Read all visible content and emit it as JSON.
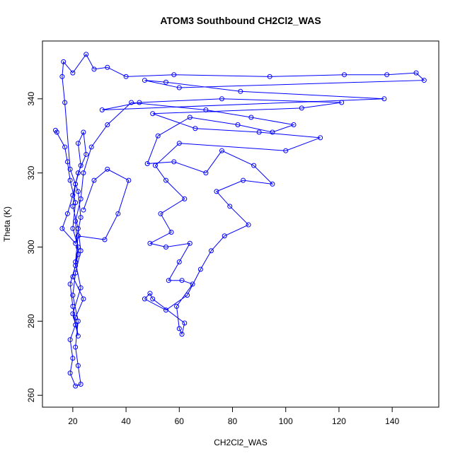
{
  "chart_data": {
    "type": "line",
    "title": "ATOM3 Southbound CH2Cl2_WAS",
    "x_label": "CH2Cl2_WAS",
    "y_label": "Theta (K)",
    "color": "#0000ff",
    "x": [
      14,
      13.5,
      17,
      18,
      19,
      21,
      20,
      22,
      21,
      19,
      20,
      21,
      19,
      20,
      19,
      21,
      23,
      22,
      21,
      22,
      20,
      21,
      23,
      22,
      20,
      21,
      23,
      22,
      24,
      25,
      22,
      20,
      18,
      16,
      21,
      23,
      22,
      19,
      17,
      16,
      16.5,
      20,
      25,
      28,
      33,
      40,
      58,
      94,
      122,
      138,
      149,
      152,
      60,
      47,
      55,
      83,
      137,
      31,
      45,
      76,
      121,
      106,
      50,
      66,
      90,
      113,
      100,
      60,
      51,
      55,
      62,
      53,
      57,
      49,
      55,
      64,
      60,
      56,
      61,
      65,
      59,
      60,
      61,
      62,
      50,
      49,
      47,
      55,
      63,
      68,
      72,
      77,
      86,
      79,
      74,
      84,
      95,
      88,
      76,
      70,
      58,
      48,
      52,
      64,
      82,
      95,
      103,
      87,
      70,
      42,
      33,
      27,
      24,
      23,
      21,
      22,
      20,
      24,
      21,
      22,
      20,
      23,
      21,
      22,
      32,
      37,
      41,
      33,
      28,
      24
    ],
    "values": [
      331,
      331.5,
      327,
      323,
      318,
      312,
      305,
      300,
      295,
      290,
      284,
      279,
      275,
      270,
      266,
      262.5,
      263,
      268,
      273,
      280,
      287,
      293,
      299,
      305,
      311,
      317,
      322,
      328,
      331,
      325,
      320,
      314,
      309,
      305,
      301,
      308,
      315,
      321,
      339,
      346,
      350,
      347,
      352,
      348,
      348.5,
      346,
      346.5,
      346,
      346.5,
      346.5,
      347,
      345,
      343,
      345,
      344.5,
      342,
      340,
      337,
      339,
      340,
      339,
      337.5,
      336,
      332,
      331,
      329.5,
      326,
      328,
      322,
      318,
      313,
      309,
      304,
      301,
      300,
      301,
      296,
      291,
      291,
      290,
      284,
      278,
      276.5,
      279.5,
      286,
      287.5,
      286,
      283,
      287,
      294,
      299,
      303,
      306,
      311,
      315,
      318,
      317,
      322,
      326,
      320,
      323,
      322.5,
      330,
      335,
      333,
      331,
      333,
      335,
      337,
      339,
      333,
      327,
      320,
      313,
      307,
      298,
      292,
      286,
      281,
      276,
      282,
      289,
      296,
      303,
      302,
      309,
      318,
      321,
      318,
      310
    ],
    "xlim": [
      8.6,
      157.5
    ],
    "ylim": [
      256.8,
      355.6
    ],
    "xticks": [
      20,
      40,
      60,
      80,
      100,
      120,
      140
    ],
    "yticks": [
      260,
      280,
      300,
      320,
      340
    ]
  }
}
